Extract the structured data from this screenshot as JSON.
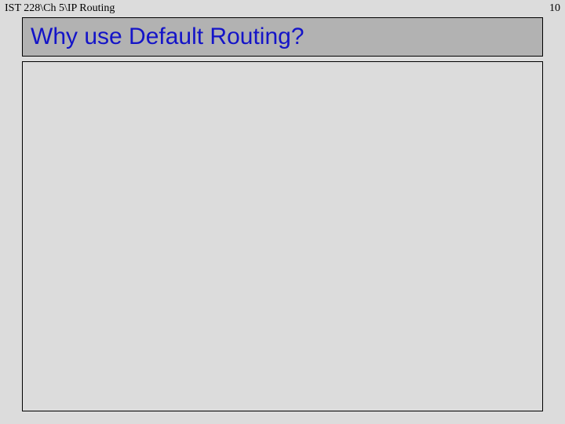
{
  "header": {
    "path": "IST 228\\Ch 5\\IP Routing",
    "page_number": "10"
  },
  "slide": {
    "title": "Why use Default Routing?"
  },
  "style": {
    "background_color": "#dcdcdc",
    "title_box_color": "#b2b2b2",
    "title_text_color": "#1414c8",
    "border_color": "#000000",
    "header_font": "Times New Roman",
    "title_font": "Verdana",
    "header_fontsize": 14,
    "title_fontsize": 30
  }
}
